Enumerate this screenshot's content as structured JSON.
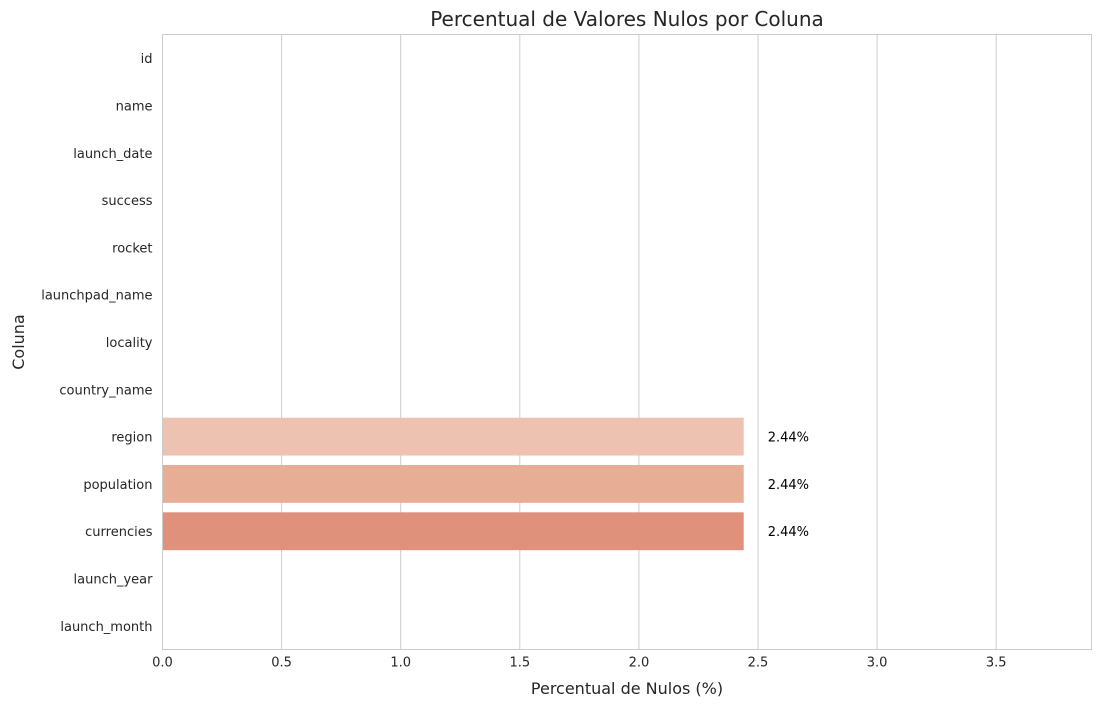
{
  "chart_data": {
    "type": "bar",
    "orientation": "horizontal",
    "title": "Percentual de Valores Nulos por Coluna",
    "xlabel": "Percentual de Nulos (%)",
    "ylabel": "Coluna",
    "xlim": [
      0,
      3.9
    ],
    "xticks": [
      "0.0",
      "0.5",
      "1.0",
      "1.5",
      "2.0",
      "2.5",
      "3.0",
      "3.5"
    ],
    "categories": [
      "id",
      "name",
      "launch_date",
      "success",
      "rocket",
      "launchpad_name",
      "locality",
      "country_name",
      "region",
      "population",
      "currencies",
      "launch_year",
      "launch_month"
    ],
    "values": [
      0,
      0,
      0,
      0,
      0,
      0,
      0,
      0,
      2.44,
      2.44,
      2.44,
      0,
      0
    ],
    "labels": [
      "",
      "",
      "",
      "",
      "",
      "",
      "",
      "",
      "2.44%",
      "2.44%",
      "2.44%",
      "",
      ""
    ],
    "colors": [
      "#fff5f0",
      "#fee9df",
      "#fddcca",
      "#fcc7af",
      "#fcb398",
      "#fc9e80",
      "#fb8a6a",
      "#f67554",
      "#eec2b0",
      "#e8ad95",
      "#df917b",
      "#c4382e",
      "#ad1d1d"
    ],
    "grid": true,
    "grid_axis": "x"
  }
}
